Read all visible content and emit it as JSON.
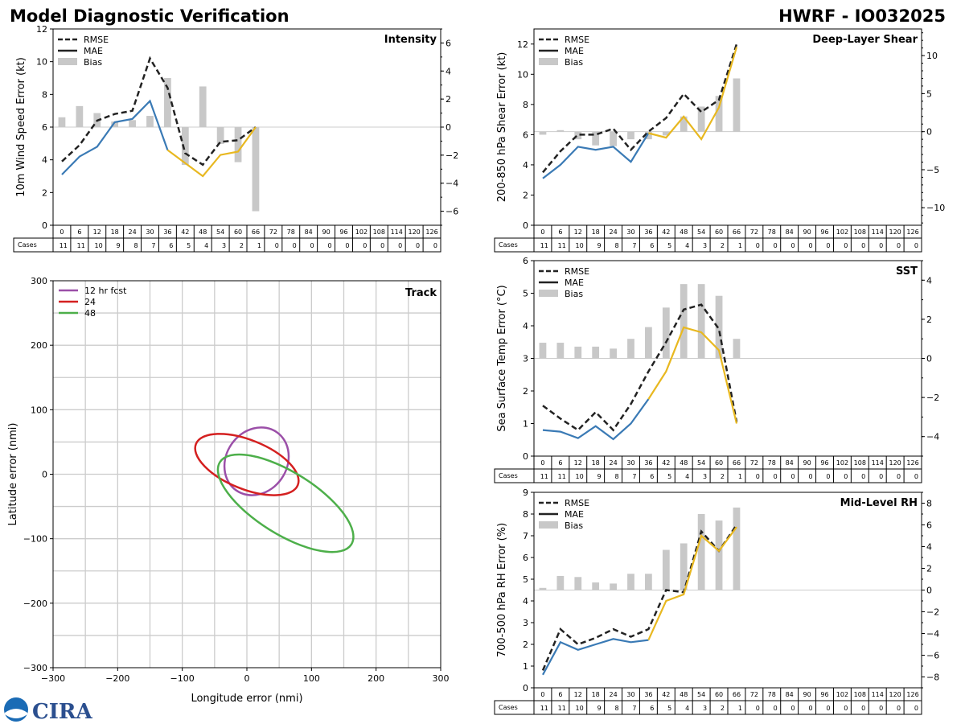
{
  "header": {
    "title": "Model Diagnostic Verification",
    "storm": "HWRF - IO032025"
  },
  "legend": {
    "rmse": "RMSE",
    "mae": "MAE",
    "bias": "Bias"
  },
  "table": {
    "cases_label": "Cases",
    "hours": [
      "0",
      "6",
      "12",
      "18",
      "24",
      "30",
      "36",
      "42",
      "48",
      "54",
      "60",
      "66",
      "72",
      "78",
      "84",
      "90",
      "96",
      "102",
      "108",
      "114",
      "120",
      "126"
    ],
    "cases": [
      "11",
      "11",
      "10",
      "9",
      "8",
      "7",
      "6",
      "5",
      "4",
      "3",
      "2",
      "1",
      "0",
      "0",
      "0",
      "0",
      "0",
      "0",
      "0",
      "0",
      "0",
      "0"
    ]
  },
  "colors": {
    "rmse": "#222222",
    "mae_early": "#3a7ab5",
    "mae_late": "#e8b820",
    "bias": "#c8c8c8",
    "grid": "#cccccc"
  },
  "logo": {
    "text": "CIRA"
  },
  "chart_data": [
    {
      "id": "intensity",
      "type": "line",
      "title": "Intensity",
      "ylabel": "10m Wind Speed Error (kt)",
      "ylim": [
        0,
        12
      ],
      "yticks": [
        "0",
        "2",
        "4",
        "6",
        "8",
        "10",
        "12"
      ],
      "y2lim": [
        -7,
        7
      ],
      "y2ticks": [
        "−6",
        "−4",
        "−2",
        "0",
        "2",
        "4",
        "6"
      ],
      "y2tickvals": [
        -6,
        -4,
        -2,
        0,
        2,
        4,
        6
      ],
      "x": [
        0,
        6,
        12,
        18,
        24,
        30,
        36,
        42,
        48,
        54,
        60,
        66
      ],
      "rmse": [
        3.9,
        4.9,
        6.4,
        6.8,
        7.0,
        10.2,
        8.4,
        4.4,
        3.7,
        5.1,
        5.2,
        6.0
      ],
      "mae": [
        3.1,
        4.2,
        4.8,
        6.3,
        6.5,
        7.6,
        4.6,
        3.8,
        3.0,
        4.3,
        4.5,
        6.0
      ],
      "bias": [
        0.7,
        1.5,
        1.0,
        0.4,
        0.5,
        0.8,
        3.5,
        -2.7,
        2.9,
        -1.2,
        -2.5,
        -6.0
      ],
      "mae_color_change_hour": 36
    },
    {
      "id": "shear",
      "type": "line",
      "title": "Deep-Layer Shear",
      "ylabel": "200-850 hPa Shear Error (kt)",
      "ylim": [
        0,
        13
      ],
      "yticks": [
        "0",
        "2",
        "4",
        "6",
        "8",
        "10",
        "12"
      ],
      "y2lim": [
        -12.3,
        13.5
      ],
      "y2ticks": [
        "−10",
        "−5",
        "0",
        "5",
        "10"
      ],
      "y2tickvals": [
        -10,
        -5,
        0,
        5,
        10
      ],
      "x": [
        0,
        6,
        12,
        18,
        24,
        30,
        36,
        42,
        48,
        54,
        60,
        66
      ],
      "rmse": [
        3.5,
        4.9,
        6.0,
        6.0,
        6.4,
        5.0,
        6.2,
        7.1,
        8.7,
        7.5,
        8.3,
        12.0
      ],
      "mae": [
        3.1,
        4.0,
        5.2,
        5.0,
        5.2,
        4.2,
        6.1,
        5.8,
        7.2,
        5.7,
        7.8,
        11.8
      ],
      "bias": [
        -0.4,
        0.2,
        -1.0,
        -1.8,
        -1.9,
        -1.0,
        -1.0,
        -0.5,
        2.0,
        3.3,
        4.7,
        7.0
      ],
      "mae_color_change_hour": 36
    },
    {
      "id": "sst",
      "type": "line",
      "title": "SST",
      "ylabel": "Sea Surface Temp Error (°C)",
      "ylim": [
        0,
        6
      ],
      "yticks": [
        "0",
        "1",
        "2",
        "3",
        "4",
        "5",
        "6"
      ],
      "y2lim": [
        -5,
        5
      ],
      "y2ticks": [
        "−4",
        "−2",
        "0",
        "2",
        "4"
      ],
      "y2tickvals": [
        -4,
        -2,
        0,
        2,
        4
      ],
      "x": [
        0,
        6,
        12,
        18,
        24,
        30,
        36,
        42,
        48,
        54,
        60,
        66
      ],
      "rmse": [
        1.55,
        1.15,
        0.8,
        1.35,
        0.8,
        1.6,
        2.6,
        3.5,
        4.5,
        4.65,
        3.9,
        1.05
      ],
      "mae": [
        0.8,
        0.75,
        0.55,
        0.92,
        0.52,
        1.0,
        1.75,
        2.6,
        3.95,
        3.8,
        3.25,
        1.0
      ],
      "bias": [
        0.8,
        0.8,
        0.6,
        0.6,
        0.5,
        1.0,
        1.6,
        2.6,
        3.8,
        3.8,
        3.2,
        1.0
      ],
      "mae_color_change_hour": 36
    },
    {
      "id": "rh",
      "type": "line",
      "title": "Mid-Level RH",
      "ylabel": "700-500 hPa RH Error (%)",
      "ylim": [
        0,
        9
      ],
      "yticks": [
        "0",
        "1",
        "2",
        "3",
        "4",
        "5",
        "6",
        "7",
        "8",
        "9"
      ],
      "y2lim": [
        -9,
        9
      ],
      "y2ticks": [
        "−8",
        "−6",
        "−4",
        "−2",
        "0",
        "2",
        "4",
        "6",
        "8"
      ],
      "y2tickvals": [
        -8,
        -6,
        -4,
        -2,
        0,
        2,
        4,
        6,
        8
      ],
      "x": [
        0,
        6,
        12,
        18,
        24,
        30,
        36,
        42,
        48,
        54,
        60,
        66
      ],
      "rmse": [
        0.8,
        2.7,
        2.0,
        2.3,
        2.7,
        2.35,
        2.7,
        4.5,
        4.4,
        7.2,
        6.3,
        7.5
      ],
      "mae": [
        0.6,
        2.1,
        1.75,
        2.0,
        2.25,
        2.1,
        2.2,
        4.0,
        4.3,
        7.0,
        6.3,
        7.4
      ],
      "bias": [
        0.2,
        1.3,
        1.2,
        0.7,
        0.6,
        1.5,
        1.5,
        3.7,
        4.3,
        7.0,
        6.4,
        7.6
      ],
      "mae_color_change_hour": 36
    },
    {
      "id": "track",
      "type": "ellipse",
      "title": "Track",
      "xlabel": "Longitude error (nmi)",
      "ylabel": "Latitude error (nmi)",
      "xlim": [
        -300,
        300
      ],
      "ylim": [
        -300,
        300
      ],
      "xticks": [
        "−300",
        "−200",
        "−100",
        "0",
        "100",
        "200",
        "300"
      ],
      "yticks": [
        "−300",
        "−200",
        "−100",
        "0",
        "100",
        "200",
        "300"
      ],
      "tickvals": [
        -300,
        -200,
        -100,
        0,
        100,
        200,
        300
      ],
      "grid_step": 50,
      "ellipses": [
        {
          "label": "12 hr fcst",
          "color": "#9b4fa8",
          "cx": 15,
          "cy": 20,
          "rx": 47,
          "ry": 55,
          "angle": -35
        },
        {
          "label": "24",
          "color": "#d42020",
          "cx": 0,
          "cy": 15,
          "rx": 85,
          "ry": 38,
          "angle": -22
        },
        {
          "label": "48",
          "color": "#4daf4a",
          "cx": 60,
          "cy": -45,
          "rx": 120,
          "ry": 48,
          "angle": -32
        }
      ]
    }
  ]
}
